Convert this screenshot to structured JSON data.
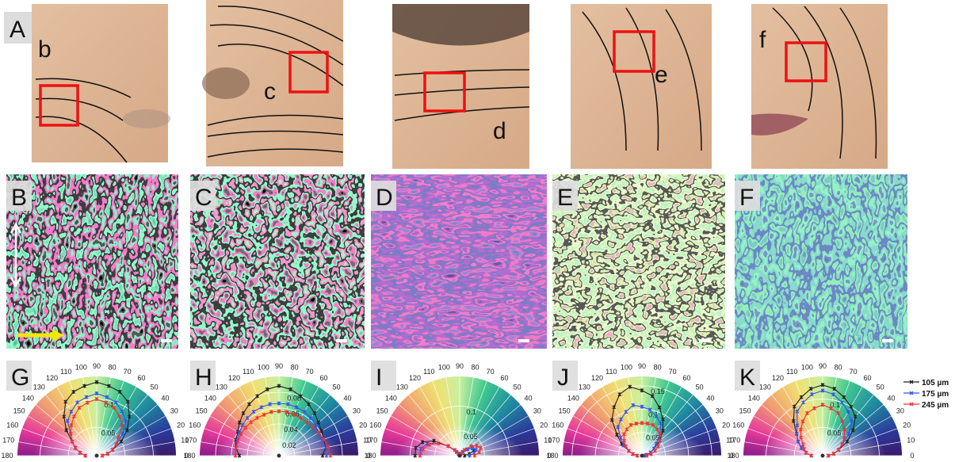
{
  "figure": {
    "photo_label": "A",
    "photo_tags": [
      "b",
      "c",
      "d",
      "e",
      "f"
    ],
    "map_labels": [
      "B",
      "C",
      "D",
      "E",
      "F"
    ]
  },
  "chart_data": [
    {
      "type": "polar",
      "label": "G",
      "x": [
        0,
        10,
        20,
        30,
        40,
        50,
        60,
        70,
        80,
        90,
        100,
        110,
        120,
        130,
        140,
        150,
        160,
        170,
        180
      ],
      "xticks": [
        0,
        10,
        20,
        30,
        40,
        50,
        60,
        70,
        80,
        90,
        100,
        110,
        120,
        130,
        140,
        150,
        160,
        170,
        180
      ],
      "rlim": [
        0,
        0.14
      ],
      "rticks": [
        0.05,
        0.1
      ],
      "series": [
        {
          "color": "#222222",
          "values": [
            0.01,
            0.02,
            0.03,
            0.05,
            0.07,
            0.09,
            0.11,
            0.12,
            0.125,
            0.13,
            0.125,
            0.12,
            0.11,
            0.09,
            0.07,
            0.05,
            0.04,
            0.03,
            0.02
          ]
        },
        {
          "color": "#3355ee",
          "values": [
            0.01,
            0.02,
            0.03,
            0.04,
            0.06,
            0.08,
            0.09,
            0.1,
            0.105,
            0.11,
            0.105,
            0.1,
            0.09,
            0.08,
            0.06,
            0.05,
            0.04,
            0.03,
            0.02
          ]
        },
        {
          "color": "#ee3333",
          "values": [
            0.01,
            0.02,
            0.03,
            0.04,
            0.05,
            0.07,
            0.08,
            0.09,
            0.095,
            0.1,
            0.095,
            0.09,
            0.08,
            0.07,
            0.06,
            0.05,
            0.04,
            0.03,
            0.02
          ]
        }
      ]
    },
    {
      "type": "polar",
      "label": "H",
      "x": [
        0,
        10,
        20,
        30,
        40,
        50,
        60,
        70,
        80,
        90,
        100,
        110,
        120,
        130,
        140,
        150,
        160,
        170,
        180
      ],
      "xticks": [
        0,
        10,
        20,
        30,
        40,
        50,
        60,
        70,
        80,
        90,
        100,
        110,
        120,
        130,
        140,
        150,
        160,
        170,
        180
      ],
      "rlim": [
        0,
        0.1
      ],
      "rticks": [
        0.02,
        0.04,
        0.06,
        0.08
      ],
      "series": [
        {
          "color": "#222222",
          "values": [
            0.055,
            0.06,
            0.06,
            0.062,
            0.065,
            0.07,
            0.075,
            0.08,
            0.085,
            0.088,
            0.085,
            0.08,
            0.075,
            0.07,
            0.065,
            0.06,
            0.058,
            0.055,
            0.05
          ]
        },
        {
          "color": "#3355ee",
          "values": [
            0.06,
            0.06,
            0.058,
            0.058,
            0.06,
            0.062,
            0.064,
            0.065,
            0.066,
            0.066,
            0.066,
            0.065,
            0.064,
            0.062,
            0.06,
            0.058,
            0.056,
            0.055,
            0.055
          ]
        },
        {
          "color": "#ee3333",
          "values": [
            0.065,
            0.063,
            0.06,
            0.058,
            0.056,
            0.055,
            0.055,
            0.055,
            0.056,
            0.056,
            0.056,
            0.055,
            0.055,
            0.055,
            0.055,
            0.055,
            0.055,
            0.055,
            0.055
          ]
        }
      ]
    },
    {
      "type": "polar",
      "label": "I",
      "x": [
        0,
        10,
        20,
        30,
        40,
        50,
        60,
        70,
        80,
        90,
        100,
        110,
        120,
        130,
        140,
        150,
        160,
        170,
        180
      ],
      "xticks": [
        0,
        10,
        20,
        30,
        40,
        50,
        60,
        70,
        80,
        90,
        100,
        110,
        120,
        130,
        140,
        150,
        160,
        170,
        180
      ],
      "rlim": [
        0,
        0.16
      ],
      "rticks": [
        0.05,
        0.1
      ],
      "series": [
        {
          "color": "#222222",
          "values": [
            0.01,
            0.02,
            0.03,
            0.03,
            0.02,
            0.01,
            0.005,
            0.003,
            0.002,
            0.002,
            0.002,
            0.003,
            0.005,
            0.01,
            0.03,
            0.06,
            0.08,
            0.09,
            0.09
          ]
        },
        {
          "color": "#3355ee",
          "values": [
            0.02,
            0.03,
            0.035,
            0.03,
            0.02,
            0.01,
            0.005,
            0.003,
            0.002,
            0.002,
            0.002,
            0.003,
            0.005,
            0.01,
            0.03,
            0.05,
            0.07,
            0.08,
            0.08
          ]
        },
        {
          "color": "#ee3333",
          "values": [
            0.03,
            0.04,
            0.045,
            0.04,
            0.03,
            0.015,
            0.005,
            0.003,
            0.002,
            0.002,
            0.002,
            0.003,
            0.005,
            0.015,
            0.03,
            0.05,
            0.065,
            0.075,
            0.08
          ]
        }
      ]
    },
    {
      "type": "polar",
      "label": "J",
      "x": [
        0,
        10,
        20,
        30,
        40,
        50,
        60,
        70,
        80,
        90,
        100,
        110,
        120,
        130,
        140,
        150,
        160,
        170,
        180
      ],
      "xticks": [
        0,
        10,
        20,
        30,
        40,
        50,
        60,
        70,
        80,
        90,
        100,
        110,
        120,
        130,
        140,
        150,
        160,
        170,
        180
      ],
      "rlim": [
        0,
        0.17
      ],
      "rticks": [
        0.05,
        0.1,
        0.15
      ],
      "series": [
        {
          "color": "#222222",
          "values": [
            0.005,
            0.01,
            0.02,
            0.03,
            0.05,
            0.07,
            0.09,
            0.11,
            0.13,
            0.14,
            0.15,
            0.14,
            0.12,
            0.1,
            0.07,
            0.05,
            0.03,
            0.02,
            0.01
          ]
        },
        {
          "color": "#3355ee",
          "values": [
            0.005,
            0.01,
            0.02,
            0.03,
            0.04,
            0.06,
            0.08,
            0.09,
            0.1,
            0.105,
            0.11,
            0.1,
            0.09,
            0.08,
            0.06,
            0.045,
            0.03,
            0.02,
            0.01
          ]
        },
        {
          "color": "#ee3333",
          "values": [
            0.01,
            0.02,
            0.03,
            0.04,
            0.05,
            0.06,
            0.065,
            0.07,
            0.07,
            0.07,
            0.07,
            0.07,
            0.065,
            0.06,
            0.05,
            0.04,
            0.03,
            0.02,
            0.01
          ]
        }
      ]
    },
    {
      "type": "polar",
      "label": "K",
      "x": [
        0,
        10,
        20,
        30,
        40,
        50,
        60,
        70,
        80,
        90,
        100,
        110,
        120,
        130,
        140,
        150,
        160,
        170,
        180
      ],
      "xticks": [
        0,
        10,
        20,
        30,
        40,
        50,
        60,
        70,
        80,
        90,
        100,
        110,
        120,
        130,
        140,
        150,
        160,
        170,
        180
      ],
      "rlim": [
        0,
        0.14
      ],
      "rticks": [
        0.05,
        0.1
      ],
      "series": [
        {
          "name": "105 µm",
          "color": "#222222",
          "values": [
            0.01,
            0.02,
            0.03,
            0.05,
            0.07,
            0.09,
            0.1,
            0.11,
            0.12,
            0.125,
            0.12,
            0.11,
            0.1,
            0.08,
            0.06,
            0.05,
            0.04,
            0.03,
            0.02
          ]
        },
        {
          "name": "175 µm",
          "color": "#3355ee",
          "values": [
            0.01,
            0.02,
            0.03,
            0.04,
            0.06,
            0.08,
            0.09,
            0.1,
            0.11,
            0.115,
            0.11,
            0.1,
            0.09,
            0.07,
            0.06,
            0.05,
            0.04,
            0.03,
            0.02
          ]
        },
        {
          "name": "245 µm",
          "color": "#ee3333",
          "values": [
            0.01,
            0.02,
            0.03,
            0.04,
            0.05,
            0.06,
            0.07,
            0.08,
            0.085,
            0.09,
            0.085,
            0.08,
            0.07,
            0.06,
            0.05,
            0.04,
            0.035,
            0.03,
            0.02
          ]
        }
      ]
    }
  ]
}
